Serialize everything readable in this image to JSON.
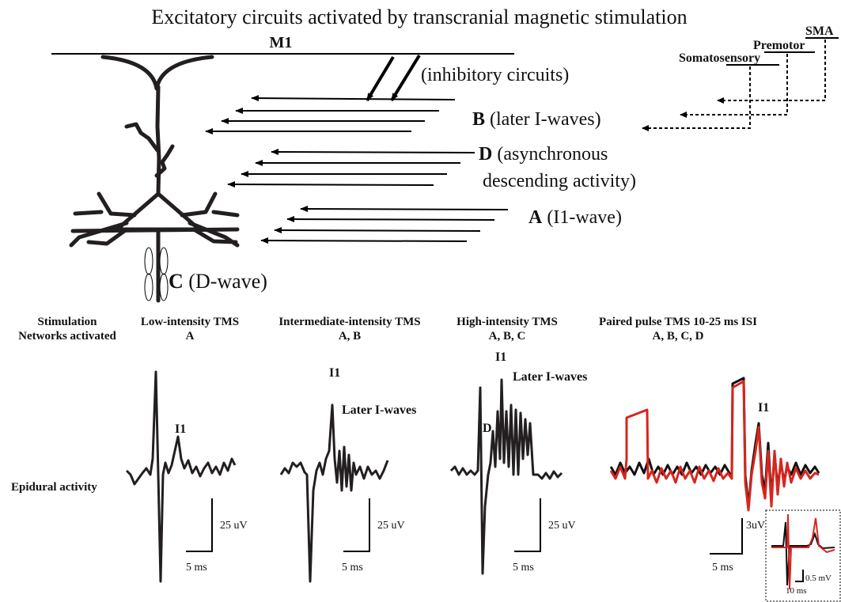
{
  "title": "Excitatory circuits activated by transcranial magnetic stimulation",
  "diagram": {
    "cortex_label": "M1",
    "inhibitory": "(inhibitory circuits)",
    "inputs": [
      {
        "letter": "B",
        "lines": [
          "(later I-waves)"
        ]
      },
      {
        "letter": "D",
        "lines": [
          "(asynchronous",
          "descending activity)"
        ]
      },
      {
        "letter": "A",
        "lines": [
          "(I1-wave)"
        ]
      }
    ],
    "d_wave": {
      "letter": "C",
      "label": "(D-wave)"
    },
    "areas": [
      "SMA",
      "Premotor",
      "Somatosensory"
    ]
  },
  "conditions": {
    "row_labels": [
      "Stimulation",
      "Networks activated"
    ],
    "columns": [
      {
        "stimulation": "Low-intensity TMS",
        "networks": "A"
      },
      {
        "stimulation": "Intermediate-intensity TMS",
        "networks": "A, B"
      },
      {
        "stimulation": "High-intensity TMS",
        "networks": "A, B, C"
      },
      {
        "stimulation": "Paired pulse TMS 10-25 ms ISI",
        "networks": "A, B, C, D"
      }
    ]
  },
  "traces": {
    "row_label": "Epidural activity",
    "panels": [
      {
        "labels": [
          "I1"
        ],
        "amplitude_scale": "25 uV",
        "time_scale": "5 ms"
      },
      {
        "labels": [
          "I1",
          "Later I-waves"
        ],
        "amplitude_scale": "25 uV",
        "time_scale": "5 ms"
      },
      {
        "labels": [
          "I1",
          "Later I-waves",
          "D"
        ],
        "amplitude_scale": "25 uV",
        "time_scale": "5 ms"
      },
      {
        "labels": [
          "I1"
        ],
        "amplitude_scale": "3uV",
        "time_scale": "5 ms"
      }
    ],
    "inset": {
      "amplitude_scale": "0.5 mV",
      "time_scale": "10 ms"
    }
  }
}
